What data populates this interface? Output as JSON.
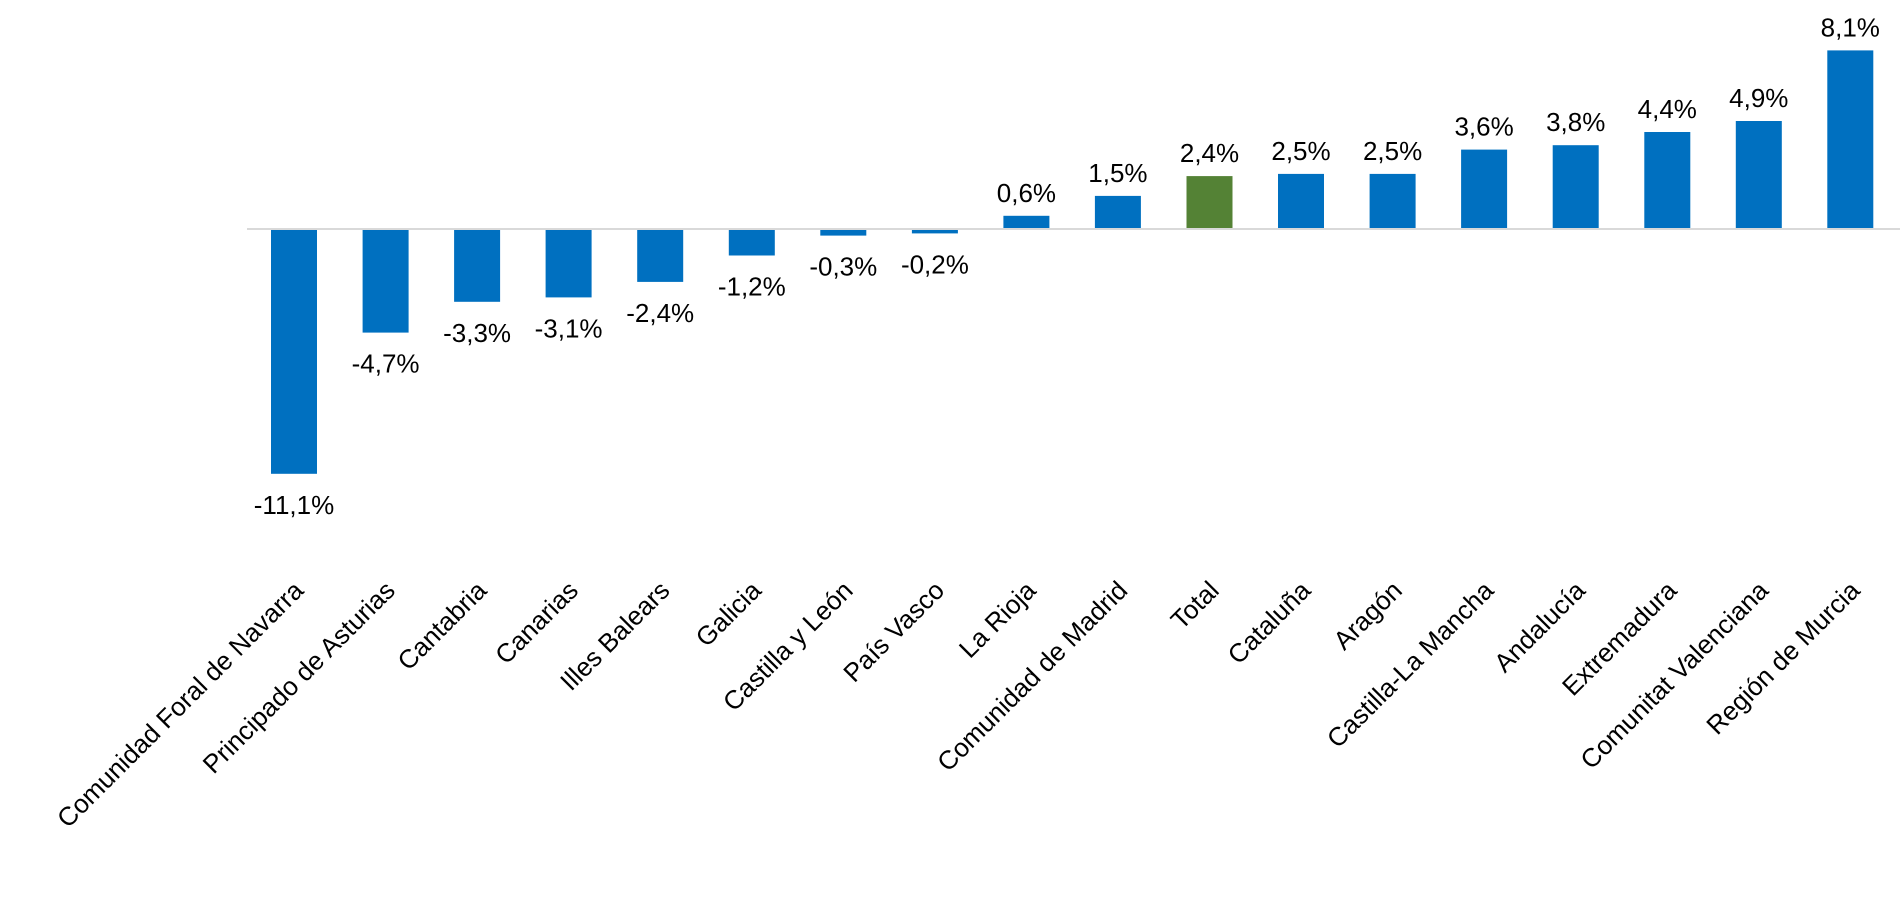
{
  "chart_data": {
    "type": "bar",
    "title": "",
    "xlabel": "",
    "ylabel": "",
    "ylim": [
      -12,
      8.5
    ],
    "grid": false,
    "legend": "none",
    "categories": [
      "Comunidad Foral de Navarra",
      "Principado de Asturias",
      "Cantabria",
      "Canarias",
      "Illes Balears",
      "Galicia",
      "Castilla y León",
      "País Vasco",
      "La Rioja",
      "Comunidad de Madrid",
      "Total",
      "Cataluña",
      "Aragón",
      "Castilla-La Mancha",
      "Andalucía",
      "Extremadura",
      "Comunitat Valenciana",
      "Región de Murcia"
    ],
    "values": [
      -11.1,
      -4.7,
      -3.3,
      -3.1,
      -2.4,
      -1.2,
      -0.3,
      -0.2,
      0.6,
      1.5,
      2.4,
      2.5,
      2.5,
      3.6,
      3.8,
      4.4,
      4.9,
      8.1
    ],
    "data_labels": [
      "-11,1%",
      "-4,7%",
      "-3,3%",
      "-3,1%",
      "-2,4%",
      "-1,2%",
      "-0,3%",
      "-0,2%",
      "0,6%",
      "1,5%",
      "2,4%",
      "2,5%",
      "2,5%",
      "3,6%",
      "3,8%",
      "4,4%",
      "4,9%",
      "8,1%"
    ],
    "colors": {
      "default": "#0070C0",
      "highlight": "#548235",
      "axis": "#D9D9D9"
    },
    "highlight_category": "Total"
  }
}
